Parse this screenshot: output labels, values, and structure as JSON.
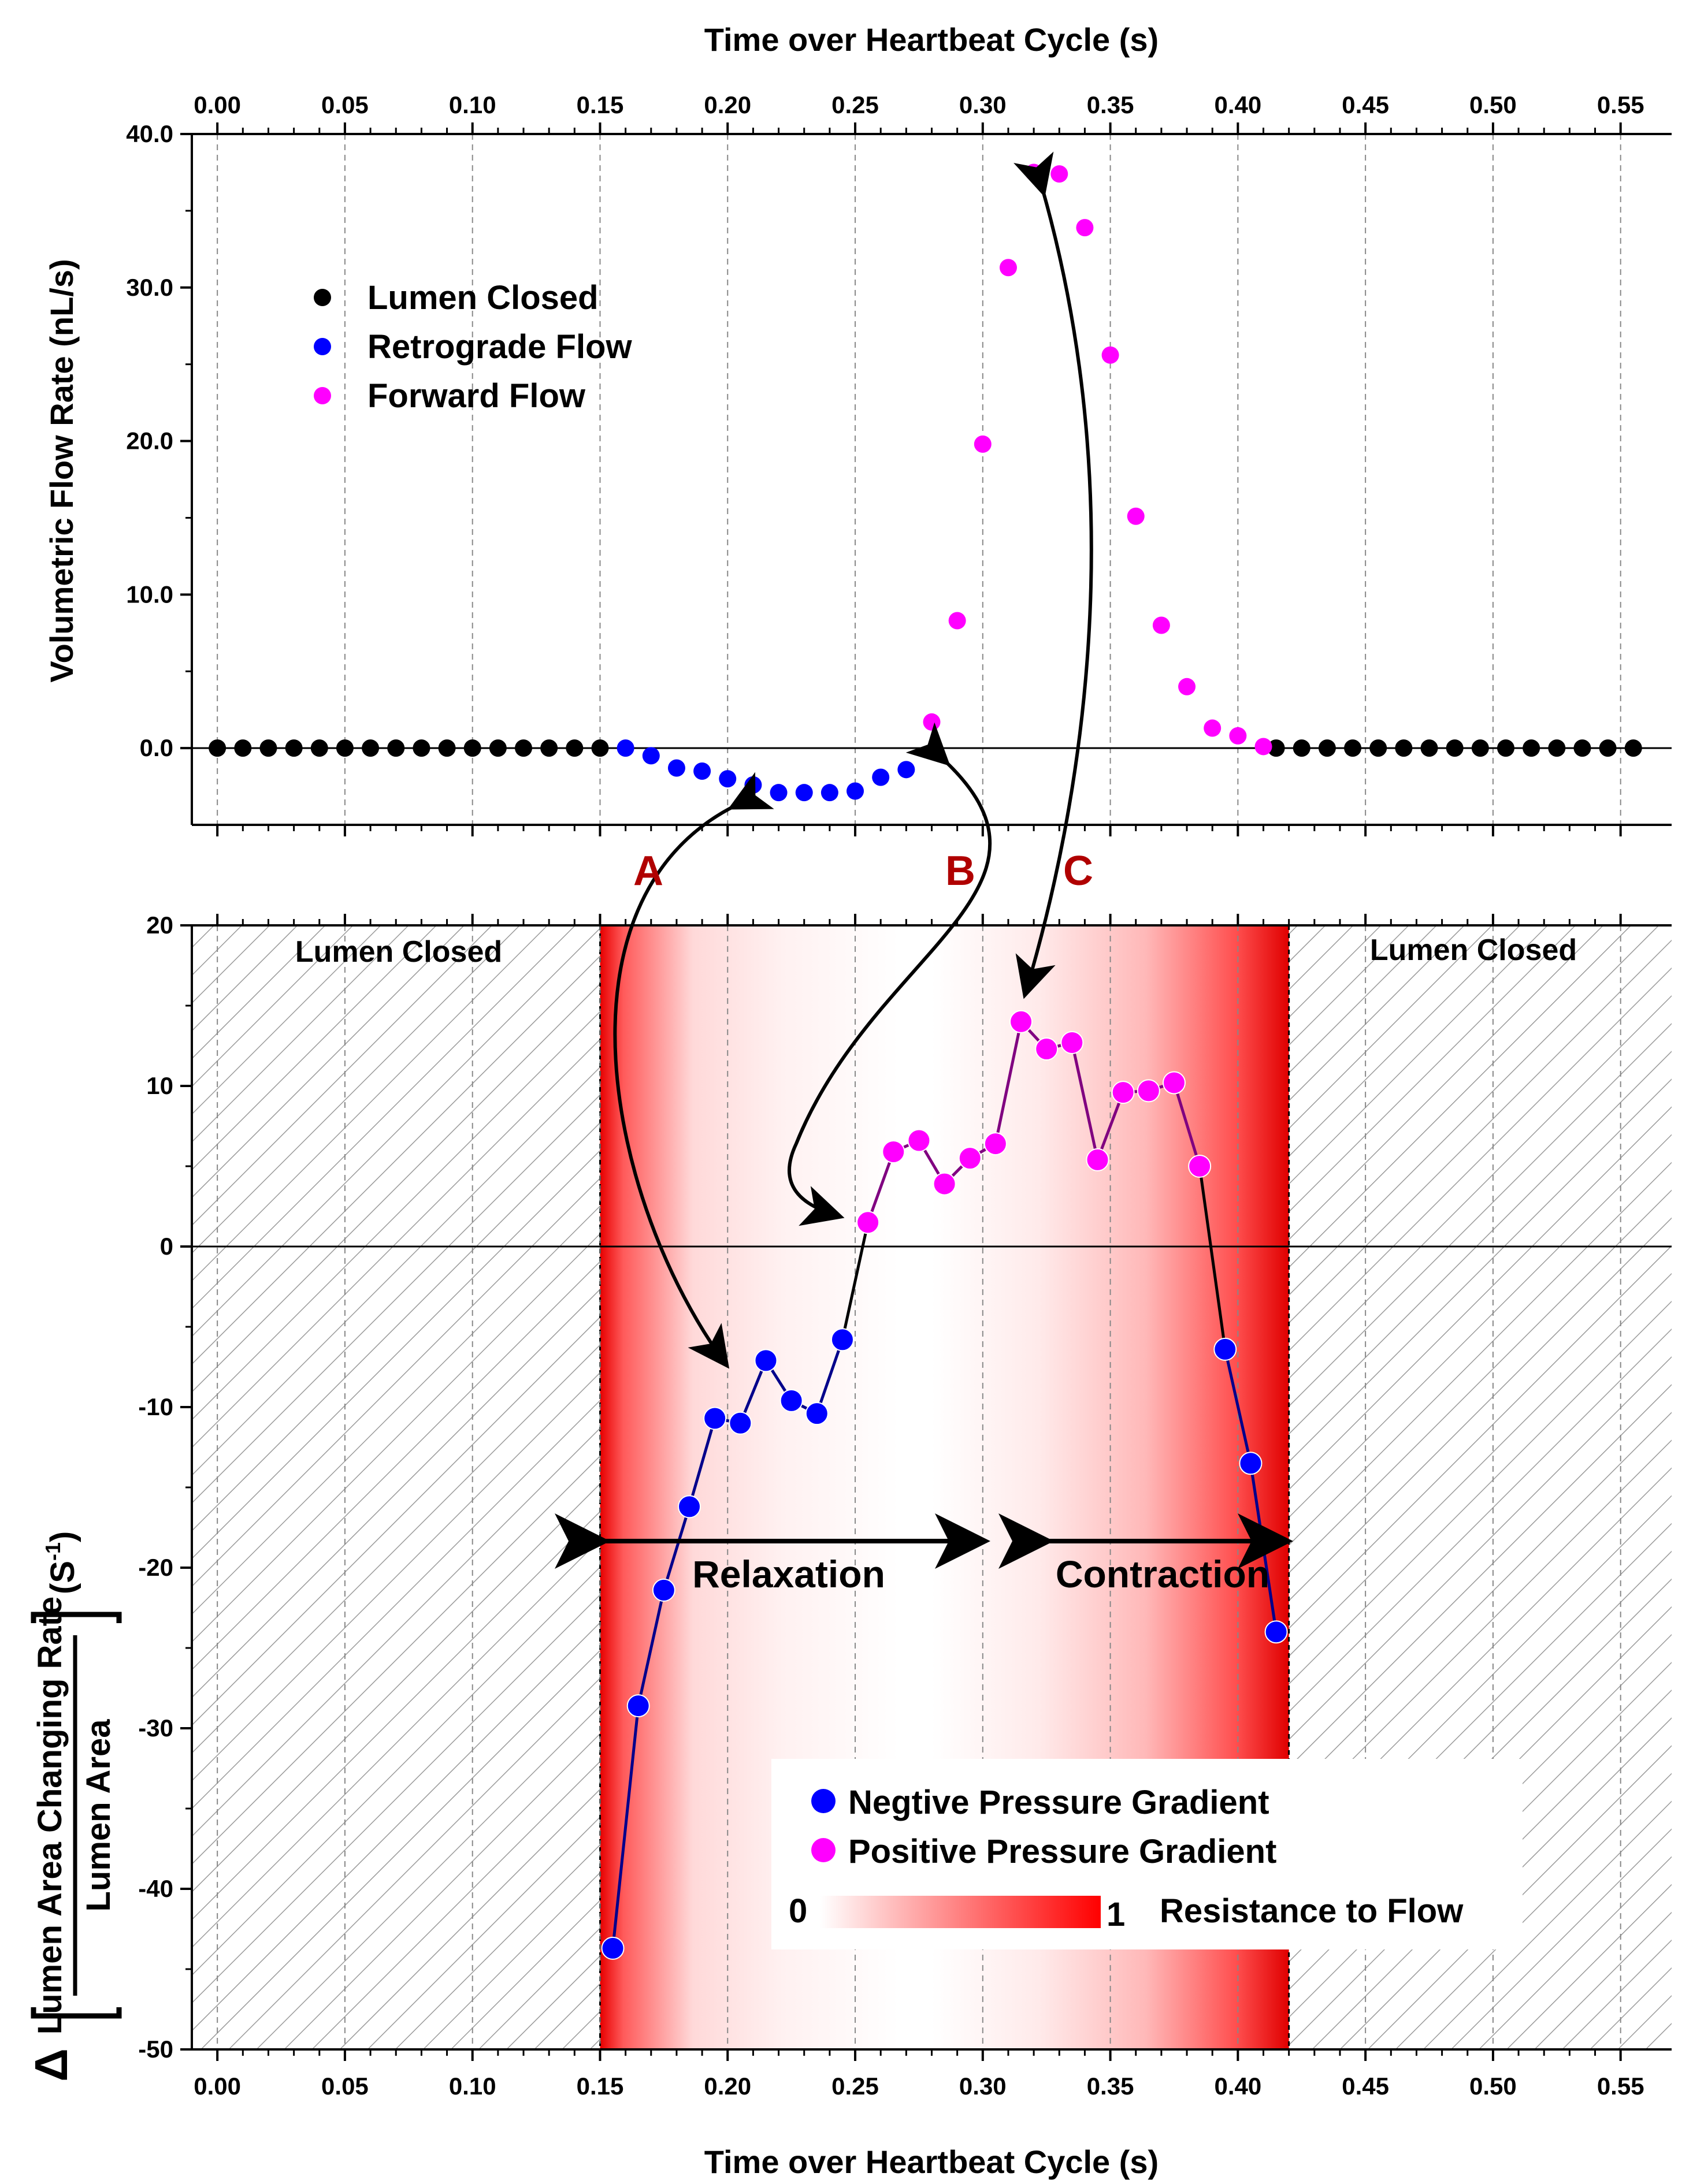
{
  "colors": {
    "closed": "#000000",
    "retrograde": "#0000ff",
    "forward": "#ff00ff",
    "negative_line": "#00008b",
    "positive_line": "#800080",
    "resistance": "#ff0000",
    "annotation_letters": "#b00000"
  },
  "top_axis_title": "Time over Heartbeat Cycle (s)",
  "bottom_axis_title": "Time over Heartbeat Cycle (s)",
  "x_ticks": [
    "0.00",
    "0.05",
    "0.10",
    "0.15",
    "0.20",
    "0.25",
    "0.30",
    "0.35",
    "0.40",
    "0.45",
    "0.50",
    "0.55"
  ],
  "top_y_title": "Volumetric Flow Rate (nL/s)",
  "top_y_ticks": [
    "0.0",
    "10.0",
    "20.0",
    "30.0",
    "40.0"
  ],
  "bottom_y_ticks": [
    "20",
    "10",
    "0",
    "-10",
    "-20",
    "-30",
    "-40",
    "-50"
  ],
  "bottom_y_title": {
    "delta": "Δ",
    "numerator": "Lumen Area Changing Rate",
    "denominator": "Lumen Area",
    "unit_prefix": "(S",
    "unit_exp": "-1",
    "unit_suffix": ")"
  },
  "top_legend": {
    "closed": "Lumen Closed",
    "retrograde": "Retrograde Flow",
    "forward": "Forward Flow"
  },
  "bottom_legend": {
    "negative": "Negtive Pressure Gradient",
    "positive": "Positive Pressure Gradient",
    "scale_min": "0",
    "scale_max": "1",
    "scale_label": "Resistance to Flow"
  },
  "regions": {
    "closed_left": "Lumen Closed",
    "closed_right": "Lumen Closed"
  },
  "phases": {
    "relaxation": "Relaxation",
    "contraction": "Contraction"
  },
  "arrow_labels": [
    "A",
    "B",
    "C"
  ],
  "chart_data": [
    {
      "type": "scatter",
      "title": "",
      "xlabel": "Time over Heartbeat Cycle (s)",
      "ylabel": "Volumetric Flow Rate (nL/s)",
      "xlim": [
        -0.01,
        0.57
      ],
      "ylim": [
        -5,
        40
      ],
      "series": [
        {
          "name": "Lumen Closed",
          "points": [
            [
              0.0,
              0
            ],
            [
              0.01,
              0
            ],
            [
              0.02,
              0
            ],
            [
              0.03,
              0
            ],
            [
              0.04,
              0
            ],
            [
              0.05,
              0
            ],
            [
              0.06,
              0
            ],
            [
              0.07,
              0
            ],
            [
              0.08,
              0
            ],
            [
              0.09,
              0
            ],
            [
              0.1,
              0
            ],
            [
              0.11,
              0
            ],
            [
              0.12,
              0
            ],
            [
              0.13,
              0
            ],
            [
              0.14,
              0
            ],
            [
              0.15,
              0
            ],
            [
              0.415,
              0
            ],
            [
              0.425,
              0
            ],
            [
              0.435,
              0
            ],
            [
              0.445,
              0
            ],
            [
              0.455,
              0
            ],
            [
              0.465,
              0
            ],
            [
              0.475,
              0
            ],
            [
              0.485,
              0
            ],
            [
              0.495,
              0
            ],
            [
              0.505,
              0
            ],
            [
              0.515,
              0
            ],
            [
              0.525,
              0
            ],
            [
              0.535,
              0
            ],
            [
              0.545,
              0
            ],
            [
              0.555,
              0
            ]
          ]
        },
        {
          "name": "Retrograde Flow",
          "points": [
            [
              0.16,
              0.0
            ],
            [
              0.17,
              -0.5
            ],
            [
              0.18,
              -1.3
            ],
            [
              0.19,
              -1.5
            ],
            [
              0.2,
              -2.0
            ],
            [
              0.21,
              -2.4
            ],
            [
              0.22,
              -2.9
            ],
            [
              0.23,
              -2.9
            ],
            [
              0.24,
              -2.9
            ],
            [
              0.25,
              -2.8
            ],
            [
              0.26,
              -1.9
            ],
            [
              0.27,
              -1.4
            ]
          ]
        },
        {
          "name": "Forward Flow",
          "points": [
            [
              0.28,
              1.7
            ],
            [
              0.29,
              8.3
            ],
            [
              0.3,
              19.8
            ],
            [
              0.31,
              31.3
            ],
            [
              0.32,
              37.5
            ],
            [
              0.33,
              37.4
            ],
            [
              0.34,
              33.9
            ],
            [
              0.35,
              25.6
            ],
            [
              0.36,
              15.1
            ],
            [
              0.37,
              8.0
            ],
            [
              0.38,
              4.0
            ],
            [
              0.39,
              1.3
            ],
            [
              0.4,
              0.8
            ],
            [
              0.41,
              0.1
            ]
          ]
        }
      ]
    },
    {
      "type": "line",
      "title": "",
      "xlabel": "Time over Heartbeat Cycle (s)",
      "ylabel": "Δ[Lumen Area Changing Rate / Lumen Area] (S^-1)",
      "xlim": [
        -0.01,
        0.57
      ],
      "ylim": [
        -50,
        20
      ],
      "series": [
        {
          "name": "Negtive Pressure Gradient",
          "points": [
            [
              0.155,
              -43.7
            ],
            [
              0.165,
              -28.6
            ],
            [
              0.175,
              -21.4
            ],
            [
              0.185,
              -16.2
            ],
            [
              0.195,
              -10.7
            ],
            [
              0.205,
              -11.0
            ],
            [
              0.215,
              -7.1
            ],
            [
              0.225,
              -9.6
            ],
            [
              0.235,
              -10.4
            ],
            [
              0.245,
              -5.8
            ],
            [
              0.395,
              -6.4
            ],
            [
              0.405,
              -13.5
            ],
            [
              0.415,
              -24.0
            ]
          ]
        },
        {
          "name": "Positive Pressure Gradient",
          "points": [
            [
              0.255,
              1.5
            ],
            [
              0.265,
              5.9
            ],
            [
              0.275,
              6.6
            ],
            [
              0.285,
              3.9
            ],
            [
              0.295,
              5.5
            ],
            [
              0.305,
              6.4
            ],
            [
              0.315,
              14.0
            ],
            [
              0.325,
              12.3
            ],
            [
              0.335,
              12.7
            ],
            [
              0.345,
              5.4
            ],
            [
              0.355,
              9.6
            ],
            [
              0.365,
              9.7
            ],
            [
              0.375,
              10.2
            ],
            [
              0.385,
              5.0
            ]
          ]
        }
      ],
      "regions": [
        {
          "label": "Lumen Closed",
          "x_range": [
            -0.01,
            0.15
          ],
          "hatched": true
        },
        {
          "label": "Lumen Closed",
          "x_range": [
            0.42,
            0.57
          ],
          "hatched": true
        }
      ],
      "phases": [
        {
          "label": "Relaxation",
          "x_range": [
            0.15,
            0.3
          ]
        },
        {
          "label": "Contraction",
          "x_range": [
            0.325,
            0.42
          ]
        }
      ],
      "resistance_scale": {
        "min": 0,
        "max": 1,
        "label": "Resistance to Flow"
      }
    }
  ]
}
